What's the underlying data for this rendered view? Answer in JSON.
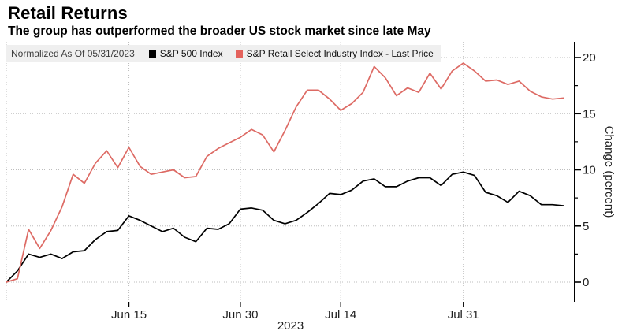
{
  "header": {
    "title": "Retail Returns",
    "subtitle": "The group has outperformed the broader US stock market since late May"
  },
  "legend": {
    "note": "Normalized As Of 05/31/2023",
    "items": [
      {
        "label": "S&P 500 Index",
        "color": "#000000"
      },
      {
        "label": "S&P Retail Select Industry Index - Last Price",
        "color": "#e4625c"
      }
    ]
  },
  "colors": {
    "legend_bg": "#efefef",
    "grid": "#bdbdbd",
    "axis": "#000000",
    "tick_text": "#1f1f1f",
    "sp500_line": "#000000",
    "retail_line": "#dd6a64"
  },
  "chart_data": {
    "type": "line",
    "title": "Retail Returns",
    "subtitle": "The group has outperformed the broader US stock market since late May",
    "note": "Normalized As Of 05/31/2023",
    "xlabel": "2023",
    "ylabel": "Change (percent)",
    "ylim": [
      -1.75,
      21.4
    ],
    "yticks": [
      0,
      5,
      10,
      15,
      20
    ],
    "y_minor_step": 2.5,
    "grid": true,
    "legend_position": "top-left",
    "x_ticks": [
      {
        "label": "Jun 15",
        "index": 11
      },
      {
        "label": "Jun 30",
        "index": 21
      },
      {
        "label": "Jul 14",
        "index": 30
      },
      {
        "label": "Jul 31",
        "index": 41
      }
    ],
    "year_label": "2023",
    "x": [
      "05/31",
      "06/01",
      "06/02",
      "06/05",
      "06/06",
      "06/07",
      "06/08",
      "06/09",
      "06/12",
      "06/13",
      "06/14",
      "06/15",
      "06/16",
      "06/20",
      "06/21",
      "06/22",
      "06/23",
      "06/26",
      "06/27",
      "06/28",
      "06/29",
      "06/30",
      "07/03",
      "07/05",
      "07/06",
      "07/07",
      "07/10",
      "07/11",
      "07/12",
      "07/13",
      "07/14",
      "07/17",
      "07/18",
      "07/19",
      "07/20",
      "07/21",
      "07/24",
      "07/25",
      "07/26",
      "07/27",
      "07/28",
      "07/31",
      "08/01",
      "08/02",
      "08/03",
      "08/04",
      "08/07",
      "08/08",
      "08/09",
      "08/10",
      "08/11"
    ],
    "series": [
      {
        "name": "S&P 500 Index",
        "color": "#000000",
        "values": [
          0.0,
          1.0,
          2.5,
          2.2,
          2.5,
          2.1,
          2.7,
          2.8,
          3.8,
          4.5,
          4.6,
          5.9,
          5.5,
          5.0,
          4.5,
          4.8,
          4.0,
          3.6,
          4.8,
          4.7,
          5.2,
          6.5,
          6.6,
          6.4,
          5.5,
          5.2,
          5.5,
          6.2,
          7.0,
          7.9,
          7.8,
          8.2,
          9.0,
          9.2,
          8.5,
          8.5,
          9.0,
          9.3,
          9.3,
          8.6,
          9.6,
          9.8,
          9.5,
          8.0,
          7.7,
          7.1,
          8.1,
          7.7,
          6.9,
          6.9,
          6.8
        ]
      },
      {
        "name": "S&P Retail Select Industry Index - Last Price",
        "color": "#dd6a64",
        "values": [
          0.0,
          0.3,
          4.7,
          3.0,
          4.6,
          6.7,
          9.6,
          8.8,
          10.6,
          11.7,
          10.2,
          12.0,
          10.3,
          9.6,
          9.8,
          10.0,
          9.3,
          9.4,
          11.2,
          11.9,
          12.4,
          12.9,
          13.6,
          13.1,
          11.6,
          13.5,
          15.6,
          17.1,
          17.1,
          16.3,
          15.3,
          15.9,
          16.9,
          19.2,
          18.2,
          16.6,
          17.3,
          16.9,
          18.6,
          17.2,
          18.8,
          19.5,
          18.8,
          17.9,
          18.0,
          17.6,
          17.9,
          17.0,
          16.5,
          16.3,
          16.4
        ]
      }
    ]
  }
}
